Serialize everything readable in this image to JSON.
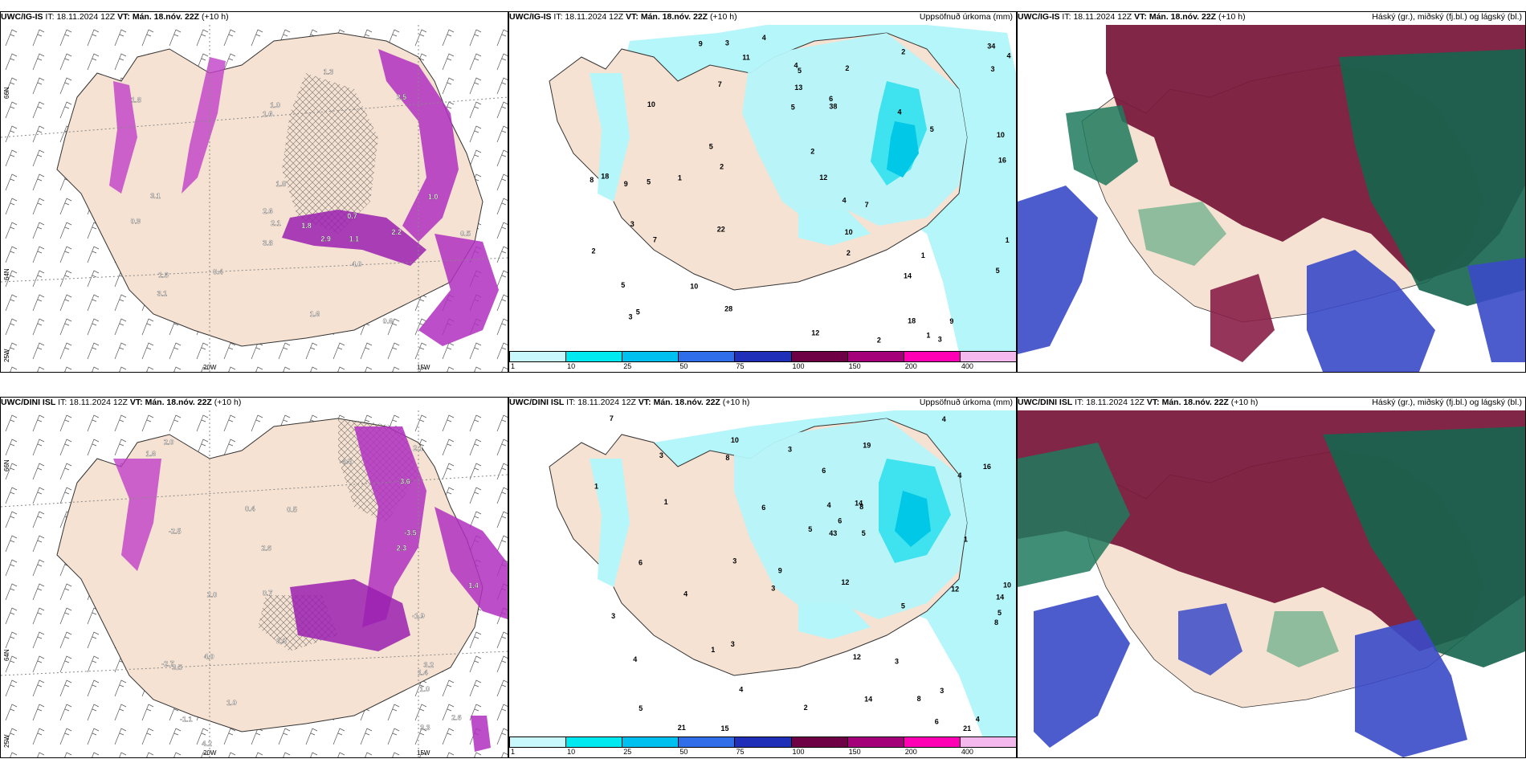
{
  "rows": [
    {
      "model": "UWC/IG-IS",
      "panels": [
        {
          "it_label": "IT:",
          "it": "18.11.2024 12Z",
          "vt_label": "VT:",
          "vt": "Mán. 18.nóv. 22Z",
          "lead": "(+10 h)",
          "title": ""
        },
        {
          "it_label": "IT:",
          "it": "18.11.2024 12Z",
          "vt_label": "VT:",
          "vt": "Mán. 18.nóv. 22Z",
          "lead": "(+10 h)",
          "title": "Uppsöfnuð úrkoma (mm)"
        },
        {
          "it_label": "IT:",
          "it": "18.11.2024 12Z",
          "vt_label": "VT:",
          "vt": "Mán. 18.nóv. 22Z",
          "lead": "(+10 h)",
          "title": "Háský (gr.), miðský (fj.bl.) og lágský (bl.)"
        }
      ],
      "wind_values": [
        "0.6",
        "0.5",
        "1.3",
        "2.1",
        "0.7",
        "1.6",
        "1.8",
        "3.1",
        "1.6",
        "3.1",
        "4.0",
        "1.8",
        "2.5",
        "1.1",
        "1.8",
        "2.2",
        "2.6",
        "1.0",
        "3.8",
        "0.4",
        "1.0",
        "0.9",
        "2.9",
        "1.6"
      ],
      "precip_values": [
        "3",
        "4",
        "2",
        "5",
        "9",
        "9",
        "12",
        "4",
        "5",
        "5",
        "6",
        "4",
        "7",
        "10",
        "10",
        "11",
        "18",
        "22",
        "34",
        "38",
        "4",
        "14",
        "5",
        "4",
        "3",
        "5",
        "10",
        "28",
        "13",
        "16",
        "18",
        "8",
        "7",
        "2",
        "3",
        "3",
        "10",
        "3",
        "5",
        "2",
        "1",
        "2",
        "2",
        "2",
        "9",
        "5",
        "5",
        "1",
        "12",
        "2",
        "1",
        "1",
        "7"
      ]
    },
    {
      "model": "UWC/DINI ISL",
      "panels": [
        {
          "it_label": "IT:",
          "it": "18.11.2024 12Z",
          "vt_label": "VT:",
          "vt": "Mán. 18.nóv. 22Z",
          "lead": "(+10 h)",
          "title": ""
        },
        {
          "it_label": "IT:",
          "it": "18.11.2024 12Z",
          "vt_label": "VT:",
          "vt": "Mán. 18.nóv. 22Z",
          "lead": "(+10 h)",
          "title": "Uppsöfnuð úrkoma (mm)"
        },
        {
          "it_label": "IT:",
          "it": "18.11.2024 12Z",
          "vt_label": "VT:",
          "vt": "Mán. 18.nóv. 22Z",
          "lead": "(+10 h)",
          "title": "Háský (gr.), miðský (fj.bl.) og lágský (bl.)"
        }
      ],
      "wind_values": [
        "0.4",
        "0.5",
        "1.4",
        "0.7",
        "2.6",
        "4.0",
        "2.3",
        "3.6",
        "1.6",
        "2.1",
        "2.6",
        "1.0",
        "3.3",
        "2.0",
        "2.3",
        "3.2",
        "1.4",
        "4.2",
        "3.5",
        "2.0",
        "-4.5",
        "-2.5",
        "-1.9",
        "-1.1",
        "-2.7",
        "-3.5",
        "1.0"
      ],
      "precip_values": [
        "4",
        "10",
        "8",
        "5",
        "3",
        "3",
        "4",
        "3",
        "8",
        "6",
        "10",
        "5",
        "12",
        "14",
        "5",
        "15",
        "14",
        "16",
        "21",
        "12",
        "43",
        "19",
        "21",
        "14",
        "5",
        "4",
        "3",
        "2",
        "8",
        "6",
        "6",
        "7",
        "6",
        "6",
        "8",
        "4",
        "3",
        "4",
        "3",
        "9",
        "5",
        "1",
        "3",
        "1",
        "1",
        "12",
        "1",
        "3",
        "4",
        "4"
      ]
    }
  ],
  "grid_labels": {
    "lat_top": "66N",
    "lat_mid": "64N",
    "lon_left": "25W",
    "lon_mid": "20W",
    "lon_right": "15W"
  },
  "colorbar": {
    "ticks": [
      "1",
      "10",
      "25",
      "50",
      "75",
      "100",
      "150",
      "200",
      "400"
    ],
    "colors": [
      "#c8f8fb",
      "#00e8f0",
      "#00c0ef",
      "#2f6ee8",
      "#1f2fb8",
      "#6e0046",
      "#a3007a",
      "#ff00b4",
      "#f5b8ee"
    ]
  },
  "colors": {
    "land": "#f5e2d2",
    "sea": "#ffffff",
    "precip_light": "#b5f6fa",
    "precip_med": "#3fe2ef",
    "precip_dark": "#00c8e6",
    "wind_magenta": "#b030c0",
    "cloud_high": "#15654e",
    "cloud_mid": "#7a1a3c",
    "cloud_low": "#3a4ac8"
  }
}
